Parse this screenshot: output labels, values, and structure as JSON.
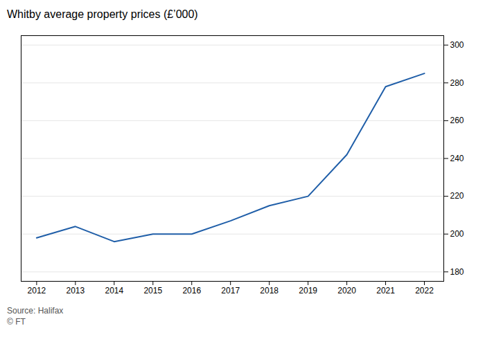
{
  "chart_data": {
    "type": "line",
    "title": "Whitby average property prices (£’000)",
    "x": [
      2012,
      2013,
      2014,
      2015,
      2016,
      2017,
      2018,
      2019,
      2020,
      2021,
      2022
    ],
    "values": [
      198,
      204,
      196,
      200,
      200,
      207,
      215,
      220,
      242,
      278,
      285
    ],
    "color": "#1f5ea8",
    "xlim": [
      2011.6,
      2022.5
    ],
    "xticks": [
      2012,
      2013,
      2014,
      2015,
      2016,
      2017,
      2018,
      2019,
      2020,
      2021,
      2022
    ],
    "ylim": [
      175,
      305
    ],
    "yticks": [
      180,
      200,
      220,
      240,
      260,
      280,
      300
    ],
    "grid": true,
    "annotations": [
      "Source: Halifax",
      "© FT"
    ]
  }
}
